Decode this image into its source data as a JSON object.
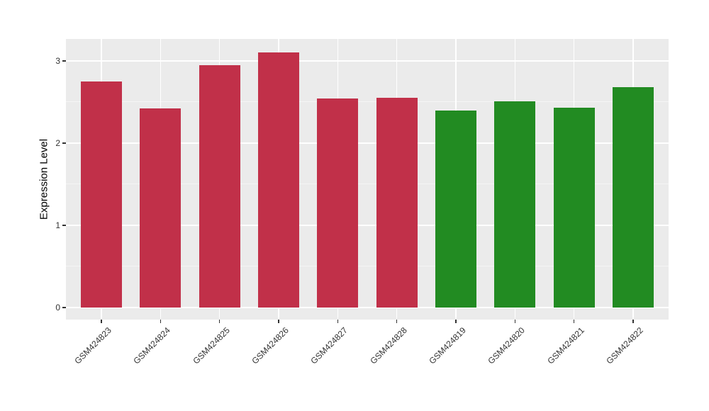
{
  "chart_data": {
    "type": "bar",
    "title": "",
    "xlabel": "",
    "ylabel": "Expression Level",
    "categories": [
      "GSM424823",
      "GSM424824",
      "GSM424825",
      "GSM424826",
      "GSM424827",
      "GSM424828",
      "GSM424819",
      "GSM424820",
      "GSM424821",
      "GSM424822"
    ],
    "values": [
      2.75,
      2.42,
      2.95,
      3.1,
      2.54,
      2.55,
      2.4,
      2.51,
      2.43,
      2.68
    ],
    "bar_colors": [
      "#C13049",
      "#C13049",
      "#C13049",
      "#C13049",
      "#C13049",
      "#C13049",
      "#228B22",
      "#228B22",
      "#228B22",
      "#228B22"
    ],
    "group_colors": {
      "red_group": "#C13049",
      "green_group": "#228B22"
    },
    "y_ticks": [
      0,
      1,
      2,
      3
    ],
    "y_tick_labels": [
      "0",
      "1",
      "2",
      "3"
    ],
    "y_minor_ticks": [
      0.5,
      1.5,
      2.5
    ],
    "ylim": [
      -0.147,
      3.267
    ],
    "bar_rel_width": 0.7,
    "x_expand": 0.6,
    "grid": "horizontal major+minor, vertical major at category centers",
    "legend": "none",
    "x_label_angle_deg": 45,
    "panel_bg": "#EBEBEB",
    "grid_major_color": "#FFFFFF",
    "grid_minor_color": "#F5F5F5",
    "axis_text_color": "#333333",
    "tick_mark_color": "#333333"
  }
}
